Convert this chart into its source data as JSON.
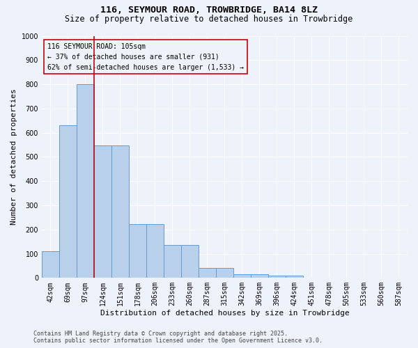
{
  "title": "116, SEYMOUR ROAD, TROWBRIDGE, BA14 8LZ",
  "subtitle": "Size of property relative to detached houses in Trowbridge",
  "xlabel": "Distribution of detached houses by size in Trowbridge",
  "ylabel": "Number of detached properties",
  "footer_line1": "Contains HM Land Registry data © Crown copyright and database right 2025.",
  "footer_line2": "Contains public sector information licensed under the Open Government Licence v3.0.",
  "categories": [
    "42sqm",
    "69sqm",
    "97sqm",
    "124sqm",
    "151sqm",
    "178sqm",
    "206sqm",
    "233sqm",
    "260sqm",
    "287sqm",
    "315sqm",
    "342sqm",
    "369sqm",
    "396sqm",
    "424sqm",
    "451sqm",
    "478sqm",
    "505sqm",
    "533sqm",
    "560sqm",
    "587sqm"
  ],
  "bar_values": [
    110,
    630,
    800,
    548,
    548,
    222,
    222,
    136,
    136,
    42,
    42,
    15,
    15,
    10,
    10,
    0,
    0,
    0,
    0,
    0,
    0
  ],
  "ylim": [
    0,
    1000
  ],
  "yticks": [
    0,
    100,
    200,
    300,
    400,
    500,
    600,
    700,
    800,
    900,
    1000
  ],
  "bar_color": "#b8d0ea",
  "bar_edge_color": "#6699cc",
  "vline_x_index": 2,
  "vline_color": "#cc0000",
  "annotation_text": "116 SEYMOUR ROAD: 105sqm\n← 37% of detached houses are smaller (931)\n62% of semi-detached houses are larger (1,533) →",
  "annotation_box_color": "#cc0000",
  "background_color": "#eef2fa",
  "grid_color": "#ffffff",
  "title_fontsize": 9.5,
  "subtitle_fontsize": 8.5,
  "xlabel_fontsize": 8,
  "ylabel_fontsize": 8,
  "tick_fontsize": 7,
  "annotation_fontsize": 7,
  "footer_fontsize": 6
}
